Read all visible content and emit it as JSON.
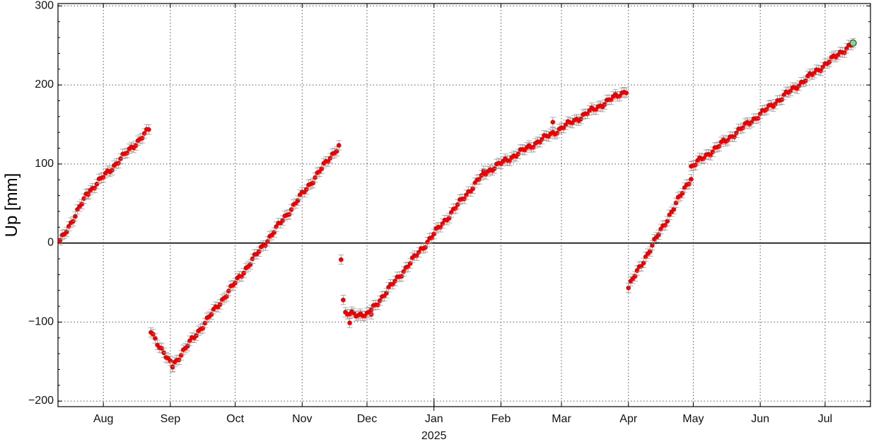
{
  "chart_data": {
    "type": "scatter",
    "title": "",
    "xlabel": "2025",
    "ylabel": "Up [mm]",
    "ylim": [
      -207,
      303
    ],
    "xlim": [
      "2024-07-11",
      "2025-07-22"
    ],
    "yticks": [
      -200,
      -100,
      0,
      100,
      200,
      300
    ],
    "ytick_labels": [
      "−200",
      "−100",
      "0",
      "100",
      "200",
      "300"
    ],
    "xtick_dates": [
      "2024-08-01",
      "2024-09-01",
      "2024-10-01",
      "2024-11-01",
      "2024-12-01",
      "2025-01-01",
      "2025-02-01",
      "2025-03-01",
      "2025-04-01",
      "2025-05-01",
      "2025-06-01",
      "2025-07-01"
    ],
    "xtick_labels": [
      "Aug",
      "Sep",
      "Oct",
      "Nov",
      "Dec",
      "Jan",
      "Feb",
      "Mar",
      "Apr",
      "May",
      "Jun",
      "Jul"
    ],
    "grid": true,
    "zero_line": 0,
    "error_bar": 6,
    "colors": {
      "points": "#ee0000",
      "last_point": "#7ddc7d",
      "errorbar": "#9a9a9a",
      "grid": "#555555"
    },
    "segments": [
      {
        "x": [
          "2024-07-12",
          "2024-07-25"
        ],
        "y": [
          2,
          64
        ]
      },
      {
        "x": [
          "2024-07-25",
          "2024-08-22"
        ],
        "y": [
          64,
          143
        ]
      },
      {
        "x": [
          "2024-08-23",
          "2024-09-02"
        ],
        "y": [
          -112,
          -157
        ]
      },
      {
        "x": [
          "2024-09-02",
          "2024-11-18"
        ],
        "y": [
          -155,
          123
        ]
      },
      {
        "x": [
          "2024-11-21",
          "2024-12-03"
        ],
        "y": [
          -90,
          -90
        ]
      },
      {
        "x": [
          "2024-12-03",
          "2025-01-24"
        ],
        "y": [
          -85,
          88
        ]
      },
      {
        "x": [
          "2025-01-24",
          "2025-03-31"
        ],
        "y": [
          88,
          193
        ]
      },
      {
        "x": [
          "2025-04-01",
          "2025-04-30"
        ],
        "y": [
          -56,
          83
        ]
      },
      {
        "x": [
          "2025-04-30",
          "2025-07-14"
        ],
        "y": [
          96,
          253
        ]
      }
    ],
    "extra_points": [
      {
        "x": "2024-11-19",
        "y": -21
      },
      {
        "x": "2024-11-20",
        "y": -72
      },
      {
        "x": "2024-11-23",
        "y": -101
      },
      {
        "x": "2025-02-25",
        "y": 153
      }
    ],
    "last_point": {
      "x": "2025-07-14",
      "y": 253
    }
  }
}
